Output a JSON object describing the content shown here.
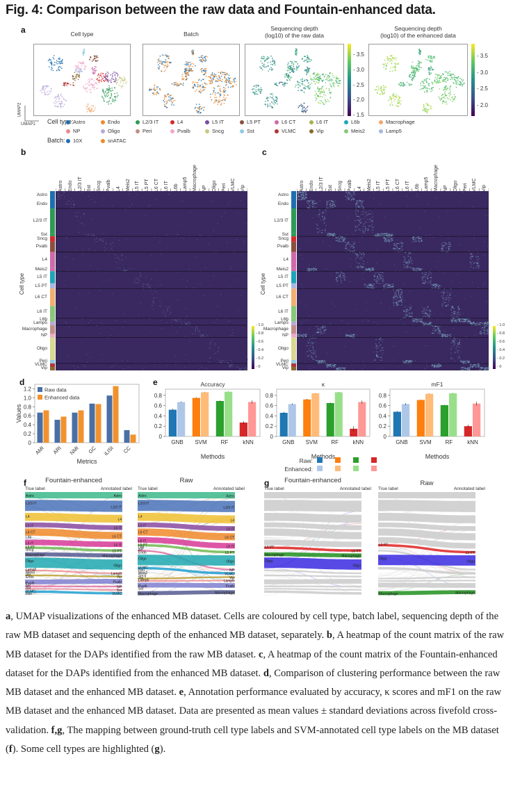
{
  "figure": {
    "title": "Fig. 4: Comparison between the raw data and Fountain-enhanced data."
  },
  "panel_a": {
    "letter": "a",
    "umap_titles": [
      [
        "Cell type",
        ""
      ],
      [
        "Batch",
        ""
      ],
      [
        "Sequencing depth",
        "(log10) of the raw data"
      ],
      [
        "Sequencing depth",
        "(log10) of the enhanced data"
      ]
    ],
    "colorbar_raw": {
      "ticks": [
        "3.5",
        "3.0",
        "2.5",
        "2.0",
        "1.5"
      ],
      "range": [
        1.5,
        3.9
      ]
    },
    "colorbar_enh": {
      "ticks": [
        "3.5",
        "3.0",
        "2.5",
        "2.0"
      ],
      "range": [
        1.7,
        3.9
      ]
    },
    "axis_labels": {
      "x": "UMAP1",
      "y": "UMAP2"
    },
    "legend": {
      "cell_type_label": "Cell type:",
      "batch_label": "Batch:",
      "cell_types": [
        {
          "name": "Astro",
          "color": "#1f6fb0"
        },
        {
          "name": "Endo",
          "color": "#ef8a2b"
        },
        {
          "name": "L2/3 IT",
          "color": "#2e9a57"
        },
        {
          "name": "L4",
          "color": "#d32a2a"
        },
        {
          "name": "L5 IT",
          "color": "#7a4aa0"
        },
        {
          "name": "L5 PT",
          "color": "#8a5040"
        },
        {
          "name": "L6 CT",
          "color": "#d06aa8"
        },
        {
          "name": "L6 IT",
          "color": "#a8b050"
        },
        {
          "name": "L6b",
          "color": "#1ea5b8"
        },
        {
          "name": "Macrophage",
          "color": "#f2a870"
        },
        {
          "name": "NP",
          "color": "#e88a8a"
        },
        {
          "name": "Oligo",
          "color": "#b8a8d8"
        },
        {
          "name": "Peri",
          "color": "#c09088"
        },
        {
          "name": "Pvalb",
          "color": "#f0a8c8"
        },
        {
          "name": "Sncg",
          "color": "#c8c880"
        },
        {
          "name": "Sst",
          "color": "#90cce0"
        },
        {
          "name": "VLMC",
          "color": "#b03838"
        },
        {
          "name": "Vip",
          "color": "#8a6a30"
        },
        {
          "name": "Meis2",
          "color": "#88c878"
        },
        {
          "name": "Lamp5",
          "color": "#a8b8e0"
        }
      ],
      "batches": [
        {
          "name": "10X",
          "color": "#1f6fb0"
        },
        {
          "name": "snATAC",
          "color": "#ef8a2b"
        }
      ]
    }
  },
  "panel_b": {
    "letter": "b",
    "ylabel": "Cell type",
    "columns": [
      "Astro",
      "Endo",
      "L2/3 IT",
      "Sst",
      "Sncg",
      "Pvalb",
      "L4",
      "Meis2",
      "L5 IT",
      "L5 PT",
      "L6 CT",
      "L6 IT",
      "L6b",
      "Lamp5",
      "Macrophage",
      "NP",
      "Oligo",
      "Peri",
      "VLMC",
      "Vip"
    ],
    "rows": [
      "Astro",
      "Endo",
      "L2/3 IT",
      "Sst",
      "Sncg",
      "Pvalb",
      "L4",
      "Meis2",
      "L5 IT",
      "L5 PT",
      "L6 CT",
      "L6 IT",
      "L6b",
      "Lamp5",
      "Macrophage",
      "NP",
      "Oligo",
      "Peri",
      "VLMC",
      "Vip"
    ],
    "colorbar_ticks": [
      "1.0",
      "0.8",
      "0.6",
      "0.4",
      "0.2",
      "0"
    ]
  },
  "panel_c": {
    "letter": "c",
    "ylabel": "Cell type",
    "columns": [
      "Astro",
      "Endo",
      "L2/3 IT",
      "Sst",
      "Sncg",
      "Pvalb",
      "L4",
      "Meis2",
      "L5 IT",
      "L5 PT",
      "L6 CT",
      "L6 IT",
      "L6b",
      "Lamp5",
      "Macrophage",
      "NP",
      "Oligo",
      "Peri",
      "VLMC",
      "Vip"
    ],
    "rows": [
      "Astro",
      "Endo",
      "L2/3 IT",
      "Sst",
      "Sncg",
      "Pvalb",
      "L4",
      "Meis2",
      "L5 IT",
      "L5 PT",
      "L6 CT",
      "L6 IT",
      "L6b",
      "Lamp5",
      "Macrophage",
      "NP",
      "Oligo",
      "Peri",
      "VLMC",
      "Vip"
    ],
    "colorbar_ticks": [
      "1.0",
      "0.8",
      "0.6",
      "0.4",
      "0.2",
      "0"
    ]
  },
  "panel_d": {
    "letter": "d"
  },
  "panel_e": {
    "letter": "e",
    "legend_raw": "Raw:",
    "legend_enh": "Enhanced:"
  },
  "panel_f": {
    "letter": "f",
    "titles": [
      "Fountain-enhanced",
      "Raw"
    ],
    "true_label": "True label",
    "annotated_label": "Annotated label"
  },
  "panel_g": {
    "letter": "g",
    "titles": [
      "Fountain-enhanced",
      "Raw"
    ],
    "true_label": "True label",
    "annotated_label": "Annotated label",
    "highlighted": [
      {
        "name": "L5 PT",
        "color": "#e02020"
      },
      {
        "name": "Macrophage",
        "color": "#20901f"
      },
      {
        "name": "Oligo",
        "color": "#3a2ae0"
      }
    ]
  },
  "chart_data": [
    {
      "id": "d",
      "type": "bar",
      "title": "",
      "xlabel": "Metrics",
      "ylabel": "Values",
      "categories": [
        "AMI",
        "ARI",
        "NMI",
        "GC",
        "iLISI",
        "CC"
      ],
      "series": [
        {
          "name": "Raw data",
          "color": "#4a6fa5",
          "values": [
            0.67,
            0.51,
            0.67,
            0.87,
            1.05,
            0.28
          ]
        },
        {
          "name": "Enhanced data",
          "color": "#f2922e",
          "values": [
            0.72,
            0.58,
            0.72,
            0.86,
            1.26,
            0.18
          ]
        }
      ],
      "ylim": [
        0,
        1.3
      ],
      "yticks": [
        "0",
        "0.2",
        "0.4",
        "0.6",
        "0.8",
        "1.0",
        "1.2"
      ],
      "legend": "top-left",
      "grid": false
    },
    {
      "id": "e-accuracy",
      "type": "bar",
      "title": "Accuracy",
      "xlabel": "Methods",
      "ylabel": "",
      "categories": [
        "GNB",
        "SVM",
        "RF",
        "kNN"
      ],
      "series": [
        {
          "name": "Raw",
          "colors": [
            "#1f77b4",
            "#ff7f0e",
            "#2ca02c",
            "#d62728"
          ],
          "values": [
            0.52,
            0.75,
            0.69,
            0.27
          ],
          "errors": [
            0.02,
            0.01,
            0.01,
            0.03
          ]
        },
        {
          "name": "Enhanced",
          "colors": [
            "#aec7e8",
            "#ffbb78",
            "#98df8a",
            "#ff9896"
          ],
          "values": [
            0.67,
            0.86,
            0.87,
            0.67
          ],
          "errors": [
            0.01,
            0.005,
            0.005,
            0.03
          ]
        }
      ],
      "ylim": [
        0,
        0.92
      ],
      "yticks": [
        "0",
        "0.2",
        "0.4",
        "0.6",
        "0.8"
      ]
    },
    {
      "id": "e-kappa",
      "type": "bar",
      "title": "κ",
      "xlabel": "Methods",
      "ylabel": "",
      "categories": [
        "GNB",
        "SVM",
        "RF",
        "kNN"
      ],
      "series": [
        {
          "name": "Raw",
          "colors": [
            "#1f77b4",
            "#ff7f0e",
            "#2ca02c",
            "#d62728"
          ],
          "values": [
            0.46,
            0.72,
            0.65,
            0.15
          ],
          "errors": [
            0.02,
            0.01,
            0.01,
            0.05
          ]
        },
        {
          "name": "Enhanced",
          "colors": [
            "#aec7e8",
            "#ffbb78",
            "#98df8a",
            "#ff9896"
          ],
          "values": [
            0.63,
            0.84,
            0.86,
            0.67
          ],
          "errors": [
            0.015,
            0.005,
            0.005,
            0.03
          ]
        }
      ],
      "ylim": [
        0,
        0.92
      ],
      "yticks": [
        "0",
        "0.2",
        "0.4",
        "0.6",
        "0.8"
      ]
    },
    {
      "id": "e-mf1",
      "type": "bar",
      "title": "mF1",
      "xlabel": "Methods",
      "ylabel": "",
      "categories": [
        "GNB",
        "SVM",
        "RF",
        "kNN"
      ],
      "series": [
        {
          "name": "Raw",
          "colors": [
            "#1f77b4",
            "#ff7f0e",
            "#2ca02c",
            "#d62728"
          ],
          "values": [
            0.48,
            0.71,
            0.61,
            0.2
          ],
          "errors": [
            0.015,
            0.005,
            0.005,
            0.03
          ]
        },
        {
          "name": "Enhanced",
          "colors": [
            "#aec7e8",
            "#ffbb78",
            "#98df8a",
            "#ff9896"
          ],
          "values": [
            0.63,
            0.83,
            0.84,
            0.64
          ],
          "errors": [
            0.02,
            0.005,
            0.005,
            0.04
          ]
        }
      ],
      "ylim": [
        0,
        0.92
      ],
      "yticks": [
        "0",
        "0.2",
        "0.4",
        "0.6",
        "0.8"
      ]
    }
  ],
  "sankey_f": {
    "enhanced_left": [
      {
        "name": "Astro",
        "color": "#3cb88a"
      },
      {
        "name": "L2/3 IT",
        "color": "#4a72b8"
      },
      {
        "name": "L4",
        "color": "#f0c030"
      },
      {
        "name": "L5 IT",
        "color": "#8a4aa0"
      },
      {
        "name": "L6 CT",
        "color": "#f08a2a"
      },
      {
        "name": "L6b",
        "color": "#8ab0d8"
      },
      {
        "name": "L6 IT",
        "color": "#d83a98"
      },
      {
        "name": "L5 PT",
        "color": "#70b850"
      },
      {
        "name": "Sncg",
        "color": "#b0b0b0"
      },
      {
        "name": "Macrophage",
        "color": "#555a90"
      },
      {
        "name": "Oligo",
        "color": "#1fa8b0"
      },
      {
        "name": "Lamp5",
        "color": "#f09090"
      },
      {
        "name": "Meis2",
        "color": "#c8c8c8"
      },
      {
        "name": "Vip",
        "color": "#b8a030"
      },
      {
        "name": "Endo",
        "color": "#c8c8c8"
      },
      {
        "name": "Pvalb",
        "color": "#8080d0"
      },
      {
        "name": "NP",
        "color": "#e070a0"
      },
      {
        "name": "Sst",
        "color": "#e890a0"
      },
      {
        "name": "VLMC",
        "color": "#20a0d0"
      },
      {
        "name": "Peri",
        "color": "#a0a0a0"
      }
    ],
    "enhanced_right": [
      "Astro",
      "L2/3 IT",
      "L4",
      "L5 IT",
      "L6 CT",
      "L6 IT",
      "L5 PT",
      "Macrophage",
      "Oligo",
      "Lamp5",
      "Vip",
      "Pvalb",
      "NP",
      "Sst",
      "VLMC"
    ],
    "raw_left": [
      "Astro",
      "L2/3 IT",
      "L4",
      "L5 IT",
      "L6 CT",
      "L6 IT",
      "L5 PT",
      "L6b",
      "NP",
      "Endo",
      "Oligo",
      "VLMC",
      "Peri",
      "Meis2",
      "Sncg",
      "Vip",
      "Lamp5",
      "Pvalb",
      "Sst",
      "Macrophage"
    ],
    "raw_right": [
      "Astro",
      "L2/3 IT",
      "L4",
      "L5 IT",
      "L6 CT",
      "L6 IT",
      "L5 PT",
      "Oligo",
      "NP",
      "VLMC",
      "Vip",
      "Lamp5",
      "Pvalb",
      "Macrophage"
    ]
  },
  "caption": {
    "parts": [
      {
        "b": "a"
      },
      {
        "t": ", UMAP visualizations of the enhanced MB dataset. Cells are coloured by cell type, batch label, sequencing depth of the raw MB dataset and sequencing depth of the enhanced MB dataset, separately. "
      },
      {
        "b": "b"
      },
      {
        "t": ", A heatmap of the count matrix of the raw MB dataset for the DAPs identified from the raw MB dataset. "
      },
      {
        "b": "c"
      },
      {
        "t": ", A heatmap of the count matrix of the Fountain-enhanced dataset for the DAPs identified from the enhanced MB dataset. "
      },
      {
        "b": "d"
      },
      {
        "t": ", Comparison of clustering performance between the raw MB dataset and the enhanced MB dataset. "
      },
      {
        "b": "e"
      },
      {
        "t": ", Annotation performance evaluated by accuracy, κ scores and mF1 on the raw MB dataset and the enhanced MB dataset. Data are presented as mean values ± standard deviations across fivefold cross-validation. "
      },
      {
        "b": "f,g"
      },
      {
        "t": ", The mapping between ground-truth cell type labels and SVM-annotated cell type labels on the MB dataset ("
      },
      {
        "b": "f"
      },
      {
        "t": "). Some cell types are highlighted ("
      },
      {
        "b": "g"
      },
      {
        "t": ")."
      }
    ]
  }
}
